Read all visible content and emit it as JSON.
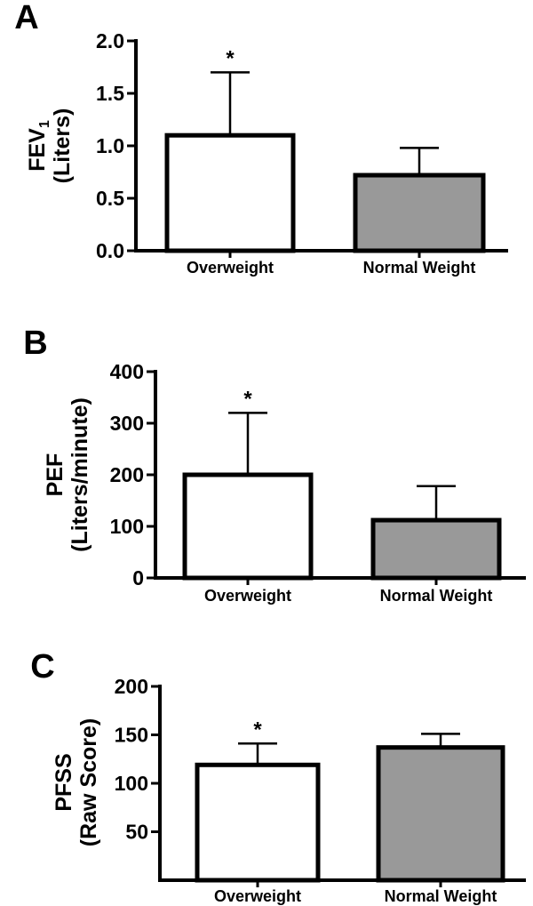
{
  "colors": {
    "overweight_fill": "#ffffff",
    "normal_fill": "#999999",
    "stroke": "#000000"
  },
  "chart_data": [
    {
      "type": "bar",
      "panel": "A",
      "ylabel_line1": "FEV",
      "ylabel_sub": "1",
      "ylabel_line2": "(Liters)",
      "categories": [
        "Overweight",
        "Normal Weight"
      ],
      "values": [
        1.1,
        0.72
      ],
      "errors": [
        0.6,
        0.26
      ],
      "significance": [
        "*",
        ""
      ],
      "ylim": [
        0,
        2.0
      ],
      "yticks": [
        0,
        0.5,
        1.0,
        1.5,
        2.0
      ],
      "ytick_labels": [
        "0.0",
        "0.5",
        "1.0",
        "1.5",
        "2.0"
      ],
      "grid": false
    },
    {
      "type": "bar",
      "panel": "B",
      "ylabel_line1": "PEF",
      "ylabel_sub": "",
      "ylabel_line2": "(Liters/minute)",
      "categories": [
        "Overweight",
        "Normal Weight"
      ],
      "values": [
        200,
        112
      ],
      "errors": [
        120,
        66
      ],
      "significance": [
        "*",
        ""
      ],
      "ylim": [
        0,
        400
      ],
      "yticks": [
        0,
        100,
        200,
        300,
        400
      ],
      "ytick_labels": [
        "0",
        "100",
        "200",
        "300",
        "400"
      ],
      "grid": false
    },
    {
      "type": "bar",
      "panel": "C",
      "ylabel_line1": "PFSS",
      "ylabel_sub": "",
      "ylabel_line2": "(Raw Score)",
      "categories": [
        "Overweight",
        "Normal Weight"
      ],
      "values": [
        119,
        137
      ],
      "errors": [
        22,
        14
      ],
      "significance": [
        "*",
        ""
      ],
      "ylim": [
        0,
        200
      ],
      "yticks": [
        50,
        100,
        150,
        200
      ],
      "ytick_labels": [
        "50",
        "100",
        "150",
        "200"
      ],
      "grid": false
    }
  ]
}
